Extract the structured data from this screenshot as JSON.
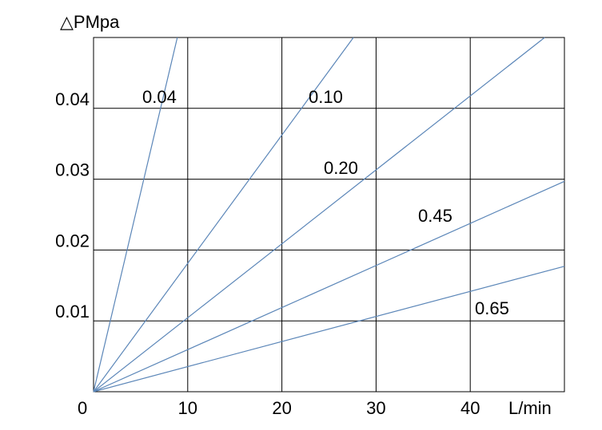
{
  "chart_data": {
    "type": "line",
    "ylabel": "△PMpa",
    "xlabel": "L/min",
    "xlim": [
      0,
      50
    ],
    "ylim": [
      0,
      0.05
    ],
    "origin_label": "0",
    "x_ticks": [
      10,
      20,
      30,
      40
    ],
    "x_tick_labels": [
      "10",
      "20",
      "30",
      "40"
    ],
    "y_ticks": [
      0.01,
      0.02,
      0.03,
      0.04
    ],
    "y_tick_labels": [
      "0.01",
      "0.02",
      "0.03",
      "0.04"
    ],
    "grid": true,
    "line_color": "#5b86b8",
    "series": [
      {
        "name": "0.04",
        "x": [
          0,
          8.9
        ],
        "y": [
          0,
          0.05
        ]
      },
      {
        "name": "0.10",
        "x": [
          0,
          27.6
        ],
        "y": [
          0,
          0.05
        ]
      },
      {
        "name": "0.20",
        "x": [
          0,
          47.9
        ],
        "y": [
          0,
          0.05
        ]
      },
      {
        "name": "0.45",
        "x": [
          0,
          50
        ],
        "y": [
          0,
          0.0297
        ]
      },
      {
        "name": "0.65",
        "x": [
          0,
          50
        ],
        "y": [
          0,
          0.0177
        ]
      }
    ]
  }
}
